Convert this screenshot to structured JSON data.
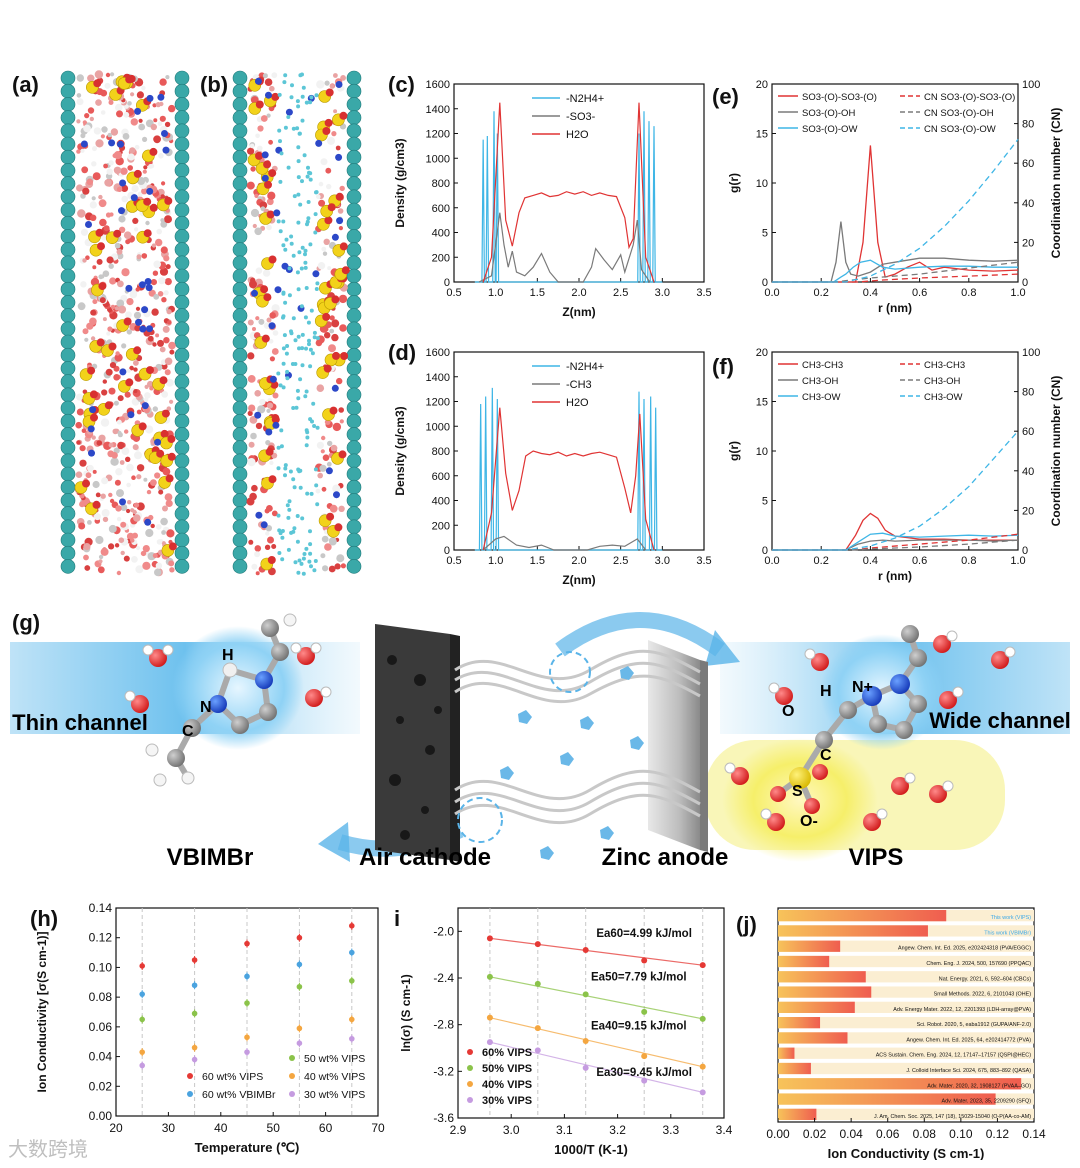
{
  "panel_labels": {
    "a": "(a)",
    "b": "(b)",
    "c": "(c)",
    "d": "(d)",
    "e": "(e)",
    "f": "(f)",
    "g": "(g)",
    "h": "(h)",
    "i": "i",
    "j": "(j)"
  },
  "colors": {
    "blue": "#3fb6e6",
    "gray": "#7a7a7a",
    "red": "#e03434",
    "h_red": "#e53935",
    "h_blue": "#4aa3df",
    "h_green": "#8bc34a",
    "h_orange": "#f4a640",
    "h_purple": "#c59be0"
  },
  "watermark": "大数跨境",
  "schematic": {
    "thin_channel": "Thin channel",
    "wide_channel": "Wide channel",
    "vbimbr": "VBIMBr",
    "air_cathode": "Air cathode",
    "zinc_anode": "Zinc anode",
    "vips": "VIPS",
    "atoms_left": {
      "h": "H",
      "n": "N",
      "c": "C"
    },
    "atoms_right": {
      "o": "O",
      "h": "H",
      "np": "N+",
      "c": "C",
      "s": "S",
      "om": "O-"
    }
  },
  "chart_data": [
    {
      "id": "c",
      "type": "line",
      "xlabel": "Z(nm)",
      "ylabel": "Density (g/cm3)",
      "xlim": [
        0.5,
        3.5
      ],
      "ylim": [
        0,
        1600
      ],
      "xticks": [
        "0.5",
        "1.0",
        "1.5",
        "2.0",
        "2.5",
        "3.0",
        "3.5"
      ],
      "yticks": [
        "0",
        "200",
        "400",
        "600",
        "800",
        "1000",
        "1200",
        "1400",
        "1600"
      ],
      "legend": [
        "-N2H4+",
        "-SO3-",
        "H2O"
      ],
      "series": [
        {
          "name": "-N2H4+",
          "color": "blue",
          "peaks": [
            [
              0.85,
              1150
            ],
            [
              0.9,
              1180
            ],
            [
              0.98,
              1380
            ],
            [
              1.02,
              1200
            ],
            [
              2.72,
              1200
            ],
            [
              2.78,
              1380
            ],
            [
              2.84,
              1300
            ],
            [
              2.9,
              1260
            ]
          ]
        },
        {
          "name": "-SO3-",
          "color": "gray",
          "x": [
            0.8,
            0.95,
            1.05,
            1.1,
            1.15,
            1.2,
            1.25,
            1.35,
            1.45,
            1.55,
            1.65,
            1.75,
            1.9,
            2.05,
            2.15,
            2.2,
            2.3,
            2.4,
            2.5,
            2.55,
            2.65,
            2.7,
            2.75,
            2.85
          ],
          "y": [
            0,
            50,
            560,
            300,
            120,
            250,
            80,
            50,
            120,
            230,
            80,
            0,
            0,
            0,
            120,
            270,
            180,
            100,
            220,
            80,
            300,
            500,
            100,
            0
          ]
        },
        {
          "name": "H2O",
          "color": "red",
          "x": [
            0.85,
            0.95,
            1.05,
            1.12,
            1.2,
            1.28,
            1.35,
            1.45,
            1.55,
            1.65,
            1.75,
            1.85,
            1.95,
            2.05,
            2.15,
            2.25,
            2.35,
            2.45,
            2.55,
            2.6,
            2.65,
            2.72,
            2.8,
            2.9
          ],
          "y": [
            0,
            200,
            1450,
            500,
            290,
            560,
            680,
            700,
            720,
            690,
            700,
            730,
            710,
            730,
            700,
            720,
            700,
            690,
            520,
            280,
            350,
            1450,
            200,
            0
          ]
        }
      ]
    },
    {
      "id": "d",
      "type": "line",
      "xlabel": "Z(nm)",
      "ylabel": "Density (g/cm3)",
      "xlim": [
        0.5,
        3.5
      ],
      "ylim": [
        0,
        1600
      ],
      "xticks": [
        "0.5",
        "1.0",
        "1.5",
        "2.0",
        "2.5",
        "3.0",
        "3.5"
      ],
      "yticks": [
        "0",
        "200",
        "400",
        "600",
        "800",
        "1000",
        "1200",
        "1400",
        "1600"
      ],
      "legend": [
        "-N2H4+",
        "-CH3",
        "H2O"
      ],
      "series": [
        {
          "name": "-N2H4+",
          "color": "blue",
          "peaks": [
            [
              0.82,
              1180
            ],
            [
              0.88,
              1240
            ],
            [
              0.96,
              1310
            ],
            [
              1.02,
              1220
            ],
            [
              2.72,
              1280
            ],
            [
              2.78,
              1220
            ],
            [
              2.86,
              1240
            ],
            [
              2.92,
              1150
            ]
          ]
        },
        {
          "name": "-CH3",
          "color": "gray",
          "x": [
            0.85,
            1.0,
            1.1,
            1.25,
            1.4,
            1.55,
            1.7,
            1.9,
            2.1,
            2.25,
            2.4,
            2.55,
            2.7,
            2.8
          ],
          "y": [
            0,
            90,
            110,
            40,
            20,
            40,
            0,
            0,
            0,
            30,
            40,
            30,
            90,
            0
          ]
        },
        {
          "name": "H2O",
          "color": "red",
          "x": [
            0.85,
            0.95,
            1.05,
            1.12,
            1.2,
            1.28,
            1.36,
            1.45,
            1.55,
            1.65,
            1.75,
            1.85,
            1.95,
            2.05,
            2.15,
            2.25,
            2.35,
            2.45,
            2.55,
            2.62,
            2.68,
            2.73,
            2.8,
            2.9
          ],
          "y": [
            0,
            300,
            1150,
            620,
            320,
            480,
            760,
            800,
            780,
            770,
            790,
            760,
            780,
            760,
            780,
            790,
            770,
            750,
            500,
            300,
            600,
            1100,
            250,
            0
          ]
        }
      ]
    },
    {
      "id": "e",
      "type": "line",
      "xlabel": "r (nm)",
      "ylabel": "g(r)",
      "y2label": "Coordination number (CN)",
      "xlim": [
        0,
        1.0
      ],
      "ylim": [
        0,
        20
      ],
      "y2lim": [
        0,
        100
      ],
      "xticks": [
        "0.0",
        "0.2",
        "0.4",
        "0.6",
        "0.8",
        "1.0"
      ],
      "yticks": [
        "0",
        "5",
        "10",
        "15",
        "20"
      ],
      "y2ticks": [
        "0",
        "20",
        "40",
        "60",
        "80",
        "100"
      ],
      "legend": [
        "SO3-(O)-SO3-(O)",
        "SO3-(O)-OH",
        "SO3-(O)-OW",
        "CN SO3-(O)-SO3-(O)",
        "CN SO3-(O)-OH",
        "CN SO3-(O)-OW"
      ],
      "series": [
        {
          "name": "SO3-(O)-SO3-(O)",
          "color": "red",
          "dash": false,
          "x": [
            0,
            0.34,
            0.37,
            0.4,
            0.43,
            0.46,
            0.5,
            0.55,
            0.6,
            0.65,
            0.7,
            0.8,
            0.9,
            1.0
          ],
          "y": [
            0,
            0,
            4,
            13.8,
            4,
            0.5,
            0.8,
            1.5,
            2,
            1.2,
            1.5,
            1.2,
            1.1,
            1.2
          ]
        },
        {
          "name": "SO3-(O)-OH",
          "color": "gray",
          "dash": false,
          "x": [
            0,
            0.24,
            0.26,
            0.28,
            0.3,
            0.32,
            0.35,
            0.4,
            0.45,
            0.5,
            0.6,
            0.7,
            0.8,
            0.9,
            1.0
          ],
          "y": [
            0,
            0,
            2,
            6.1,
            2,
            0.8,
            0.6,
            1,
            1.8,
            2,
            2.4,
            2.4,
            2.2,
            2.1,
            2.2
          ]
        },
        {
          "name": "SO3-(O)-OW",
          "color": "blue",
          "dash": false,
          "x": [
            0,
            0.25,
            0.28,
            0.3,
            0.33,
            0.36,
            0.4,
            0.45,
            0.5,
            0.6,
            0.7,
            0.8,
            0.9,
            1.0
          ],
          "y": [
            0,
            0,
            0.5,
            0.8,
            1.5,
            2.0,
            2.2,
            1.5,
            1.3,
            1.5,
            1.6,
            1.6,
            1.5,
            1.5
          ]
        },
        {
          "name": "CN SO3-(O)-SO3-(O)",
          "color": "red",
          "dash": true,
          "x": [
            0,
            0.35,
            0.45,
            0.6,
            0.8,
            1.0
          ],
          "y2": [
            0,
            0,
            1,
            2,
            3,
            4
          ]
        },
        {
          "name": "CN SO3-(O)-OH",
          "color": "gray",
          "dash": true,
          "x": [
            0,
            0.25,
            0.4,
            0.6,
            0.8,
            1.0
          ],
          "y2": [
            0,
            0,
            2,
            4,
            7,
            10
          ]
        },
        {
          "name": "CN SO3-(O)-OW",
          "color": "blue",
          "dash": true,
          "x": [
            0,
            0.3,
            0.4,
            0.5,
            0.6,
            0.7,
            0.8,
            0.9,
            1.0
          ],
          "y2": [
            0,
            0,
            3,
            9,
            17,
            28,
            41,
            56,
            72
          ]
        }
      ]
    },
    {
      "id": "f",
      "type": "line",
      "xlabel": "r (nm)",
      "ylabel": "g(r)",
      "y2label": "Coordination number (CN)",
      "xlim": [
        0,
        1.0
      ],
      "ylim": [
        0,
        20
      ],
      "y2lim": [
        0,
        100
      ],
      "xticks": [
        "0.0",
        "0.2",
        "0.4",
        "0.6",
        "0.8",
        "1.0"
      ],
      "yticks": [
        "0",
        "5",
        "10",
        "15",
        "20"
      ],
      "y2ticks": [
        "0",
        "20",
        "40",
        "60",
        "80",
        "100"
      ],
      "legend": [
        "CH3-CH3",
        "CH3-OH",
        "CH3-OW",
        "CH3-CH3",
        "CH3-OH",
        "CH3-OW"
      ],
      "series": [
        {
          "name": "CH3-CH3",
          "color": "red",
          "dash": false,
          "x": [
            0,
            0.3,
            0.34,
            0.37,
            0.4,
            0.43,
            0.46,
            0.5,
            0.6,
            0.7,
            0.8,
            0.9,
            1.0
          ],
          "y": [
            0,
            0,
            1.5,
            3,
            3.7,
            3.2,
            2,
            1.4,
            1.1,
            1.1,
            1.0,
            1.0,
            1.0
          ]
        },
        {
          "name": "CH3-OH",
          "color": "gray",
          "dash": false,
          "x": [
            0,
            0.3,
            0.35,
            0.4,
            0.45,
            0.5,
            0.6,
            0.7,
            0.8,
            0.9,
            1.0
          ],
          "y": [
            0,
            0,
            0.6,
            0.9,
            1.0,
            0.9,
            1.0,
            1.0,
            1.0,
            0.9,
            1.0
          ]
        },
        {
          "name": "CH3-OW",
          "color": "blue",
          "dash": false,
          "x": [
            0,
            0.3,
            0.35,
            0.4,
            0.45,
            0.5,
            0.6,
            0.7,
            0.8,
            0.9,
            1.0
          ],
          "y": [
            0,
            0,
            0.8,
            1.6,
            1.7,
            1.4,
            1.3,
            1.4,
            1.5,
            1.4,
            1.5
          ]
        },
        {
          "name": "CH3-CH3 CN",
          "color": "red",
          "dash": true,
          "x": [
            0,
            0.32,
            0.4,
            0.6,
            0.8,
            1.0
          ],
          "y2": [
            0,
            0,
            1,
            3,
            5,
            8
          ]
        },
        {
          "name": "CH3-OH CN",
          "color": "gray",
          "dash": true,
          "x": [
            0,
            0.32,
            0.4,
            0.6,
            0.8,
            1.0
          ],
          "y2": [
            0,
            0,
            0.5,
            1.5,
            3,
            5
          ]
        },
        {
          "name": "CH3-OW CN",
          "color": "blue",
          "dash": true,
          "x": [
            0,
            0.3,
            0.4,
            0.5,
            0.6,
            0.7,
            0.8,
            0.9,
            1.0
          ],
          "y2": [
            0,
            0,
            2,
            6,
            12,
            21,
            32,
            46,
            60
          ]
        }
      ]
    },
    {
      "id": "h",
      "type": "scatter",
      "xlabel": "Temperature (℃)",
      "ylabel": "Ion Conductivity [σ(S cm-1)]",
      "xlim": [
        20,
        70
      ],
      "ylim": [
        0,
        0.14
      ],
      "xticks": [
        "20",
        "30",
        "40",
        "50",
        "60",
        "70"
      ],
      "yticks": [
        "0.00",
        "0.02",
        "0.04",
        "0.06",
        "0.08",
        "0.10",
        "0.12",
        "0.14"
      ],
      "x": [
        25,
        35,
        45,
        55,
        65
      ],
      "legend_left": [
        "60 wt% VIPS",
        "60 wt% VBIMBr"
      ],
      "legend_right": [
        "50 wt% VIPS",
        "40 wt% VIPS",
        "30 wt% VIPS"
      ],
      "series": [
        {
          "name": "60 wt% VIPS",
          "color": "h_red",
          "values": [
            0.101,
            0.105,
            0.116,
            0.12,
            0.128
          ]
        },
        {
          "name": "60 wt% VBIMBr",
          "color": "h_blue",
          "values": [
            0.082,
            0.088,
            0.094,
            0.102,
            0.11
          ]
        },
        {
          "name": "50 wt% VIPS",
          "color": "h_green",
          "values": [
            0.065,
            0.069,
            0.076,
            0.087,
            0.091
          ]
        },
        {
          "name": "40 wt% VIPS",
          "color": "h_orange",
          "values": [
            0.043,
            0.046,
            0.053,
            0.059,
            0.065
          ]
        },
        {
          "name": "30 wt% VIPS",
          "color": "h_purple",
          "values": [
            0.034,
            0.038,
            0.043,
            0.049,
            0.052
          ]
        }
      ]
    },
    {
      "id": "i",
      "type": "scatter",
      "xlabel": "1000/T (K-1)",
      "ylabel": "ln(σ) (S cm-1)",
      "xlim": [
        2.9,
        3.4
      ],
      "ylim": [
        -3.6,
        -1.8
      ],
      "xticks": [
        "2.9",
        "3.0",
        "3.1",
        "3.2",
        "3.3",
        "3.4"
      ],
      "yticks": [
        "-3.6",
        "-3.2",
        "-2.8",
        "-2.4",
        "-2.0"
      ],
      "x": [
        2.96,
        3.05,
        3.14,
        3.25,
        3.36
      ],
      "legend": [
        "60% VIPS",
        "50% VIPS",
        "40% VIPS",
        "30% VIPS"
      ],
      "annotations": [
        "Ea60=4.99 kJ/mol",
        "Ea50=7.79 kJ/mol",
        "Ea40=9.15 kJ/mol",
        "Ea30=9.45 kJ/mol"
      ],
      "series": [
        {
          "name": "60% VIPS",
          "color": "h_red",
          "values": [
            -2.06,
            -2.11,
            -2.16,
            -2.25,
            -2.29
          ]
        },
        {
          "name": "50% VIPS",
          "color": "h_green",
          "values": [
            -2.39,
            -2.45,
            -2.54,
            -2.69,
            -2.75
          ]
        },
        {
          "name": "40% VIPS",
          "color": "h_orange",
          "values": [
            -2.74,
            -2.83,
            -2.94,
            -3.07,
            -3.16
          ]
        },
        {
          "name": "30% VIPS",
          "color": "h_purple",
          "values": [
            -2.95,
            -3.02,
            -3.17,
            -3.28,
            -3.38
          ]
        }
      ]
    },
    {
      "id": "j",
      "type": "bar",
      "xlabel": "Ion Conductivity (S cm-1)",
      "xlim": [
        0,
        0.14
      ],
      "xticks": [
        "0.00",
        "0.02",
        "0.04",
        "0.06",
        "0.08",
        "0.10",
        "0.12",
        "0.14"
      ],
      "bars": [
        {
          "label": "This work (VIPS)",
          "value": 0.092,
          "highlight": true
        },
        {
          "label": "This work (VBIMBr)",
          "value": 0.082,
          "highlight": true
        },
        {
          "label": "Angew. Chem. Int. Ed. 2025, e202424318 (PVA/EGGC)",
          "value": 0.034
        },
        {
          "label": "Chem. Eng. J. 2024, 500, 157690 (PPQAC)",
          "value": 0.028
        },
        {
          "label": "Nat. Energy. 2021, 6, 592–604 (CBCs)",
          "value": 0.048
        },
        {
          "label": "Small Methods. 2022, 6, 2101043 (OHE)",
          "value": 0.051
        },
        {
          "label": "Adv. Energy Mater. 2022, 12, 2201393 (LDH-array@PVA)",
          "value": 0.042
        },
        {
          "label": "Sci. Robot. 2020, 5, eaba1912 (GUPA/ANF-2.0)",
          "value": 0.023
        },
        {
          "label": "Angew. Chem. Int. Ed. 2025, 64, e202414772 (PVA)",
          "value": 0.038
        },
        {
          "label": "ACS Sustain. Chem. Eng. 2024, 12, 17147–17157 (QSPI@HEC)",
          "value": 0.009
        },
        {
          "label": "J. Colloid Interface Sci. 2024, 675, 883–892 (QASA)",
          "value": 0.018
        },
        {
          "label": "Adv. Mater. 2020, 32, 1908127 (PVAA–GO)",
          "value": 0.133
        },
        {
          "label": "Adv. Mater. 2023, 35, 2209290 (SFQ)",
          "value": 0.119
        },
        {
          "label": "J. Am. Chem. Soc. 2025, 147 (18), 15029-15040 (O-P(AA-co-AM)",
          "value": 0.021
        }
      ]
    }
  ]
}
